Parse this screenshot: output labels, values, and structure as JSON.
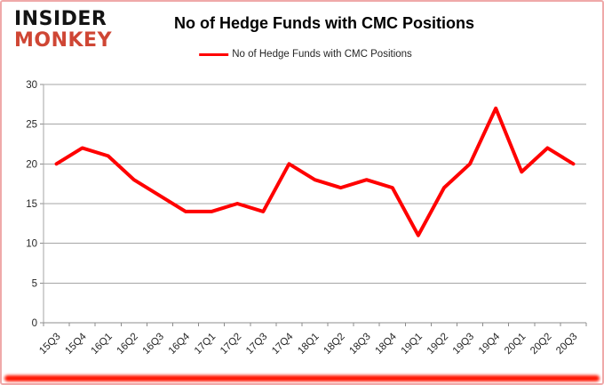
{
  "header": {
    "logo_line1": "INSIDER",
    "logo_line2": "MONKEY",
    "title": "No of Hedge Funds with CMC Positions",
    "legend_label": "No of Hedge Funds with CMC Positions"
  },
  "colors": {
    "series_line": "#ff0000",
    "gridline": "#a6a6a6",
    "axis": "#8c8c8c",
    "tick_text": "#262626",
    "logo_black": "#141414",
    "logo_red": "#cf4634",
    "frame_border": "#efa9a9",
    "bottom_bar": "#ff1400"
  },
  "chart_data": {
    "type": "line",
    "title": "No of Hedge Funds with CMC Positions",
    "categories": [
      "15Q3",
      "15Q4",
      "16Q1",
      "16Q2",
      "16Q3",
      "16Q4",
      "17Q1",
      "17Q2",
      "17Q3",
      "17Q4",
      "18Q1",
      "18Q2",
      "18Q3",
      "18Q4",
      "19Q1",
      "19Q2",
      "19Q3",
      "19Q4",
      "20Q1",
      "20Q2",
      "20Q3"
    ],
    "series": [
      {
        "name": "No of Hedge Funds with CMC Positions",
        "values": [
          20,
          22,
          21,
          18,
          16,
          14,
          14,
          15,
          14,
          20,
          18,
          17,
          18,
          17,
          11,
          17,
          20,
          27,
          19,
          22,
          20
        ]
      }
    ],
    "xlabel": "",
    "ylabel": "",
    "ylim": [
      0,
      30
    ],
    "ytick_step": 5,
    "grid": true,
    "legend_position": "top-center"
  }
}
